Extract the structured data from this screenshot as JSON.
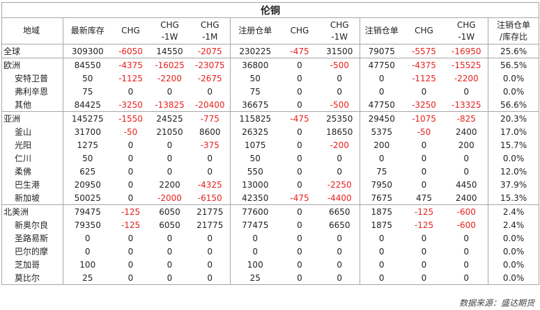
{
  "title": "伦铜",
  "headers": [
    [
      "地域"
    ],
    [
      "最新库存"
    ],
    [
      "CHG"
    ],
    [
      "CHG",
      "-1W"
    ],
    [
      "CHG",
      "-1M"
    ],
    [
      "注册仓单"
    ],
    [
      "CHG"
    ],
    [
      "CHG",
      "-1W"
    ],
    [
      "注销仓单"
    ],
    [
      "CHG"
    ],
    [
      "CHG",
      "-1W"
    ],
    [
      "注销仓单",
      "/库存比"
    ]
  ],
  "rows": [
    {
      "region": "全球",
      "child": false,
      "group_start": true,
      "values": [
        "309300",
        "-6050",
        "14550",
        "-2075",
        "230225",
        "-475",
        "31500",
        "79075",
        "-5575",
        "-16950",
        "25.6%"
      ]
    },
    {
      "region": "欧洲",
      "child": false,
      "group_start": true,
      "values": [
        "84550",
        "-4375",
        "-16025",
        "-23075",
        "36800",
        "0",
        "-500",
        "47750",
        "-4375",
        "-15525",
        "56.5%"
      ]
    },
    {
      "region": "安特卫普",
      "child": true,
      "group_start": false,
      "values": [
        "50",
        "-1125",
        "-2200",
        "-2675",
        "50",
        "0",
        "0",
        "0",
        "-1125",
        "-2200",
        "0.0%"
      ]
    },
    {
      "region": "弗利辛恩",
      "child": true,
      "group_start": false,
      "values": [
        "75",
        "0",
        "0",
        "0",
        "75",
        "0",
        "0",
        "0",
        "0",
        "0",
        "0.0%"
      ]
    },
    {
      "region": "其他",
      "child": true,
      "group_start": false,
      "values": [
        "84425",
        "-3250",
        "-13825",
        "-20400",
        "36675",
        "0",
        "-500",
        "47750",
        "-3250",
        "-13325",
        "56.6%"
      ]
    },
    {
      "region": "亚洲",
      "child": false,
      "group_start": true,
      "values": [
        "145275",
        "-1550",
        "24525",
        "-775",
        "115825",
        "-475",
        "25350",
        "29450",
        "-1075",
        "-825",
        "20.3%"
      ]
    },
    {
      "region": "釜山",
      "child": true,
      "group_start": false,
      "values": [
        "31700",
        "-50",
        "21050",
        "8600",
        "26325",
        "0",
        "18650",
        "5375",
        "-50",
        "2400",
        "17.0%"
      ]
    },
    {
      "region": "光阳",
      "child": true,
      "group_start": false,
      "values": [
        "1275",
        "0",
        "0",
        "-375",
        "1075",
        "0",
        "-200",
        "200",
        "0",
        "200",
        "15.7%"
      ]
    },
    {
      "region": "仁川",
      "child": true,
      "group_start": false,
      "values": [
        "50",
        "0",
        "0",
        "0",
        "50",
        "0",
        "0",
        "0",
        "0",
        "0",
        "0.0%"
      ]
    },
    {
      "region": "柔佛",
      "child": true,
      "group_start": false,
      "values": [
        "625",
        "0",
        "0",
        "0",
        "550",
        "0",
        "0",
        "75",
        "0",
        "0",
        "12.0%"
      ]
    },
    {
      "region": "巴生港",
      "child": true,
      "group_start": false,
      "values": [
        "20950",
        "0",
        "2200",
        "-4325",
        "13000",
        "0",
        "-2250",
        "7950",
        "0",
        "4450",
        "37.9%"
      ]
    },
    {
      "region": "新加坡",
      "child": true,
      "group_start": false,
      "values": [
        "50025",
        "0",
        "-2000",
        "-6150",
        "42350",
        "-475",
        "-4400",
        "7675",
        "475",
        "2400",
        "15.3%"
      ]
    },
    {
      "region": "北美洲",
      "child": false,
      "group_start": true,
      "values": [
        "79475",
        "-125",
        "6050",
        "21775",
        "77600",
        "0",
        "6650",
        "1875",
        "-125",
        "-600",
        "2.4%"
      ]
    },
    {
      "region": "新奥尔良",
      "child": true,
      "group_start": false,
      "values": [
        "79350",
        "-125",
        "6050",
        "21775",
        "77475",
        "0",
        "6650",
        "1875",
        "-125",
        "-600",
        "2.4%"
      ]
    },
    {
      "region": "圣路易斯",
      "child": true,
      "group_start": false,
      "values": [
        "0",
        "0",
        "0",
        "0",
        "0",
        "0",
        "0",
        "0",
        "0",
        "0",
        "0.0%"
      ]
    },
    {
      "region": "巴尔的摩",
      "child": true,
      "group_start": false,
      "values": [
        "0",
        "0",
        "0",
        "0",
        "0",
        "0",
        "0",
        "0",
        "0",
        "0",
        "0.0%"
      ]
    },
    {
      "region": "芝加哥",
      "child": true,
      "group_start": false,
      "values": [
        "100",
        "0",
        "0",
        "0",
        "100",
        "0",
        "0",
        "0",
        "0",
        "0",
        "0.0%"
      ]
    },
    {
      "region": "莫比尔",
      "child": true,
      "group_start": false,
      "values": [
        "25",
        "0",
        "0",
        "0",
        "25",
        "0",
        "0",
        "0",
        "0",
        "0",
        "0.0%"
      ]
    }
  ],
  "source": "数据来源：盛达期货",
  "colors": {
    "negative": "#e8201c",
    "text": "#222222",
    "grid": "#a6a6a6"
  }
}
